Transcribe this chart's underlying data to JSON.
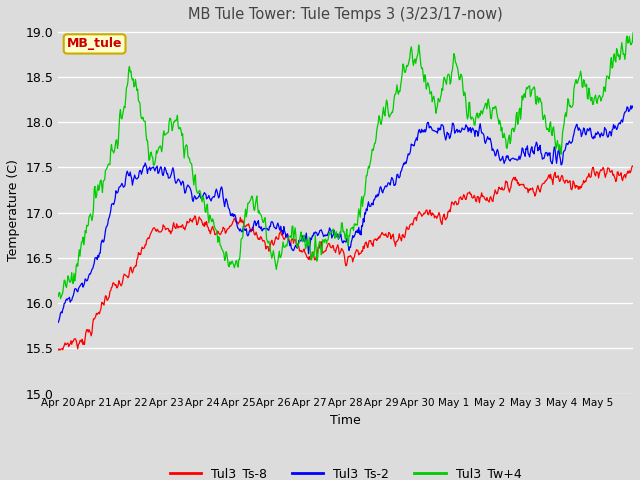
{
  "title": "MB Tule Tower: Tule Temps 3 (3/23/17-now)",
  "xlabel": "Time",
  "ylabel": "Temperature (C)",
  "ylim": [
    15.0,
    19.0
  ],
  "yticks": [
    15.0,
    15.5,
    16.0,
    16.5,
    17.0,
    17.5,
    18.0,
    18.5,
    19.0
  ],
  "xtick_labels": [
    "Apr 20",
    "Apr 21",
    "Apr 22",
    "Apr 23",
    "Apr 24",
    "Apr 25",
    "Apr 26",
    "Apr 27",
    "Apr 28",
    "Apr 29",
    "Apr 30",
    "May 1",
    "May 2",
    "May 3",
    "May 4",
    "May 5"
  ],
  "legend_labels": [
    "Tul3_Ts-8",
    "Tul3_Ts-2",
    "Tul3_Tw+4"
  ],
  "legend_colors": [
    "#ff0000",
    "#0000ff",
    "#00cc00"
  ],
  "line_colors": [
    "#ff0000",
    "#0000ff",
    "#00cc00"
  ],
  "background_color": "#dcdcdc",
  "grid_color": "#ffffff",
  "annotation_text": "MB_tule",
  "annotation_color": "#cc0000",
  "annotation_bg": "#ffffcc",
  "annotation_border": "#ccaa00"
}
